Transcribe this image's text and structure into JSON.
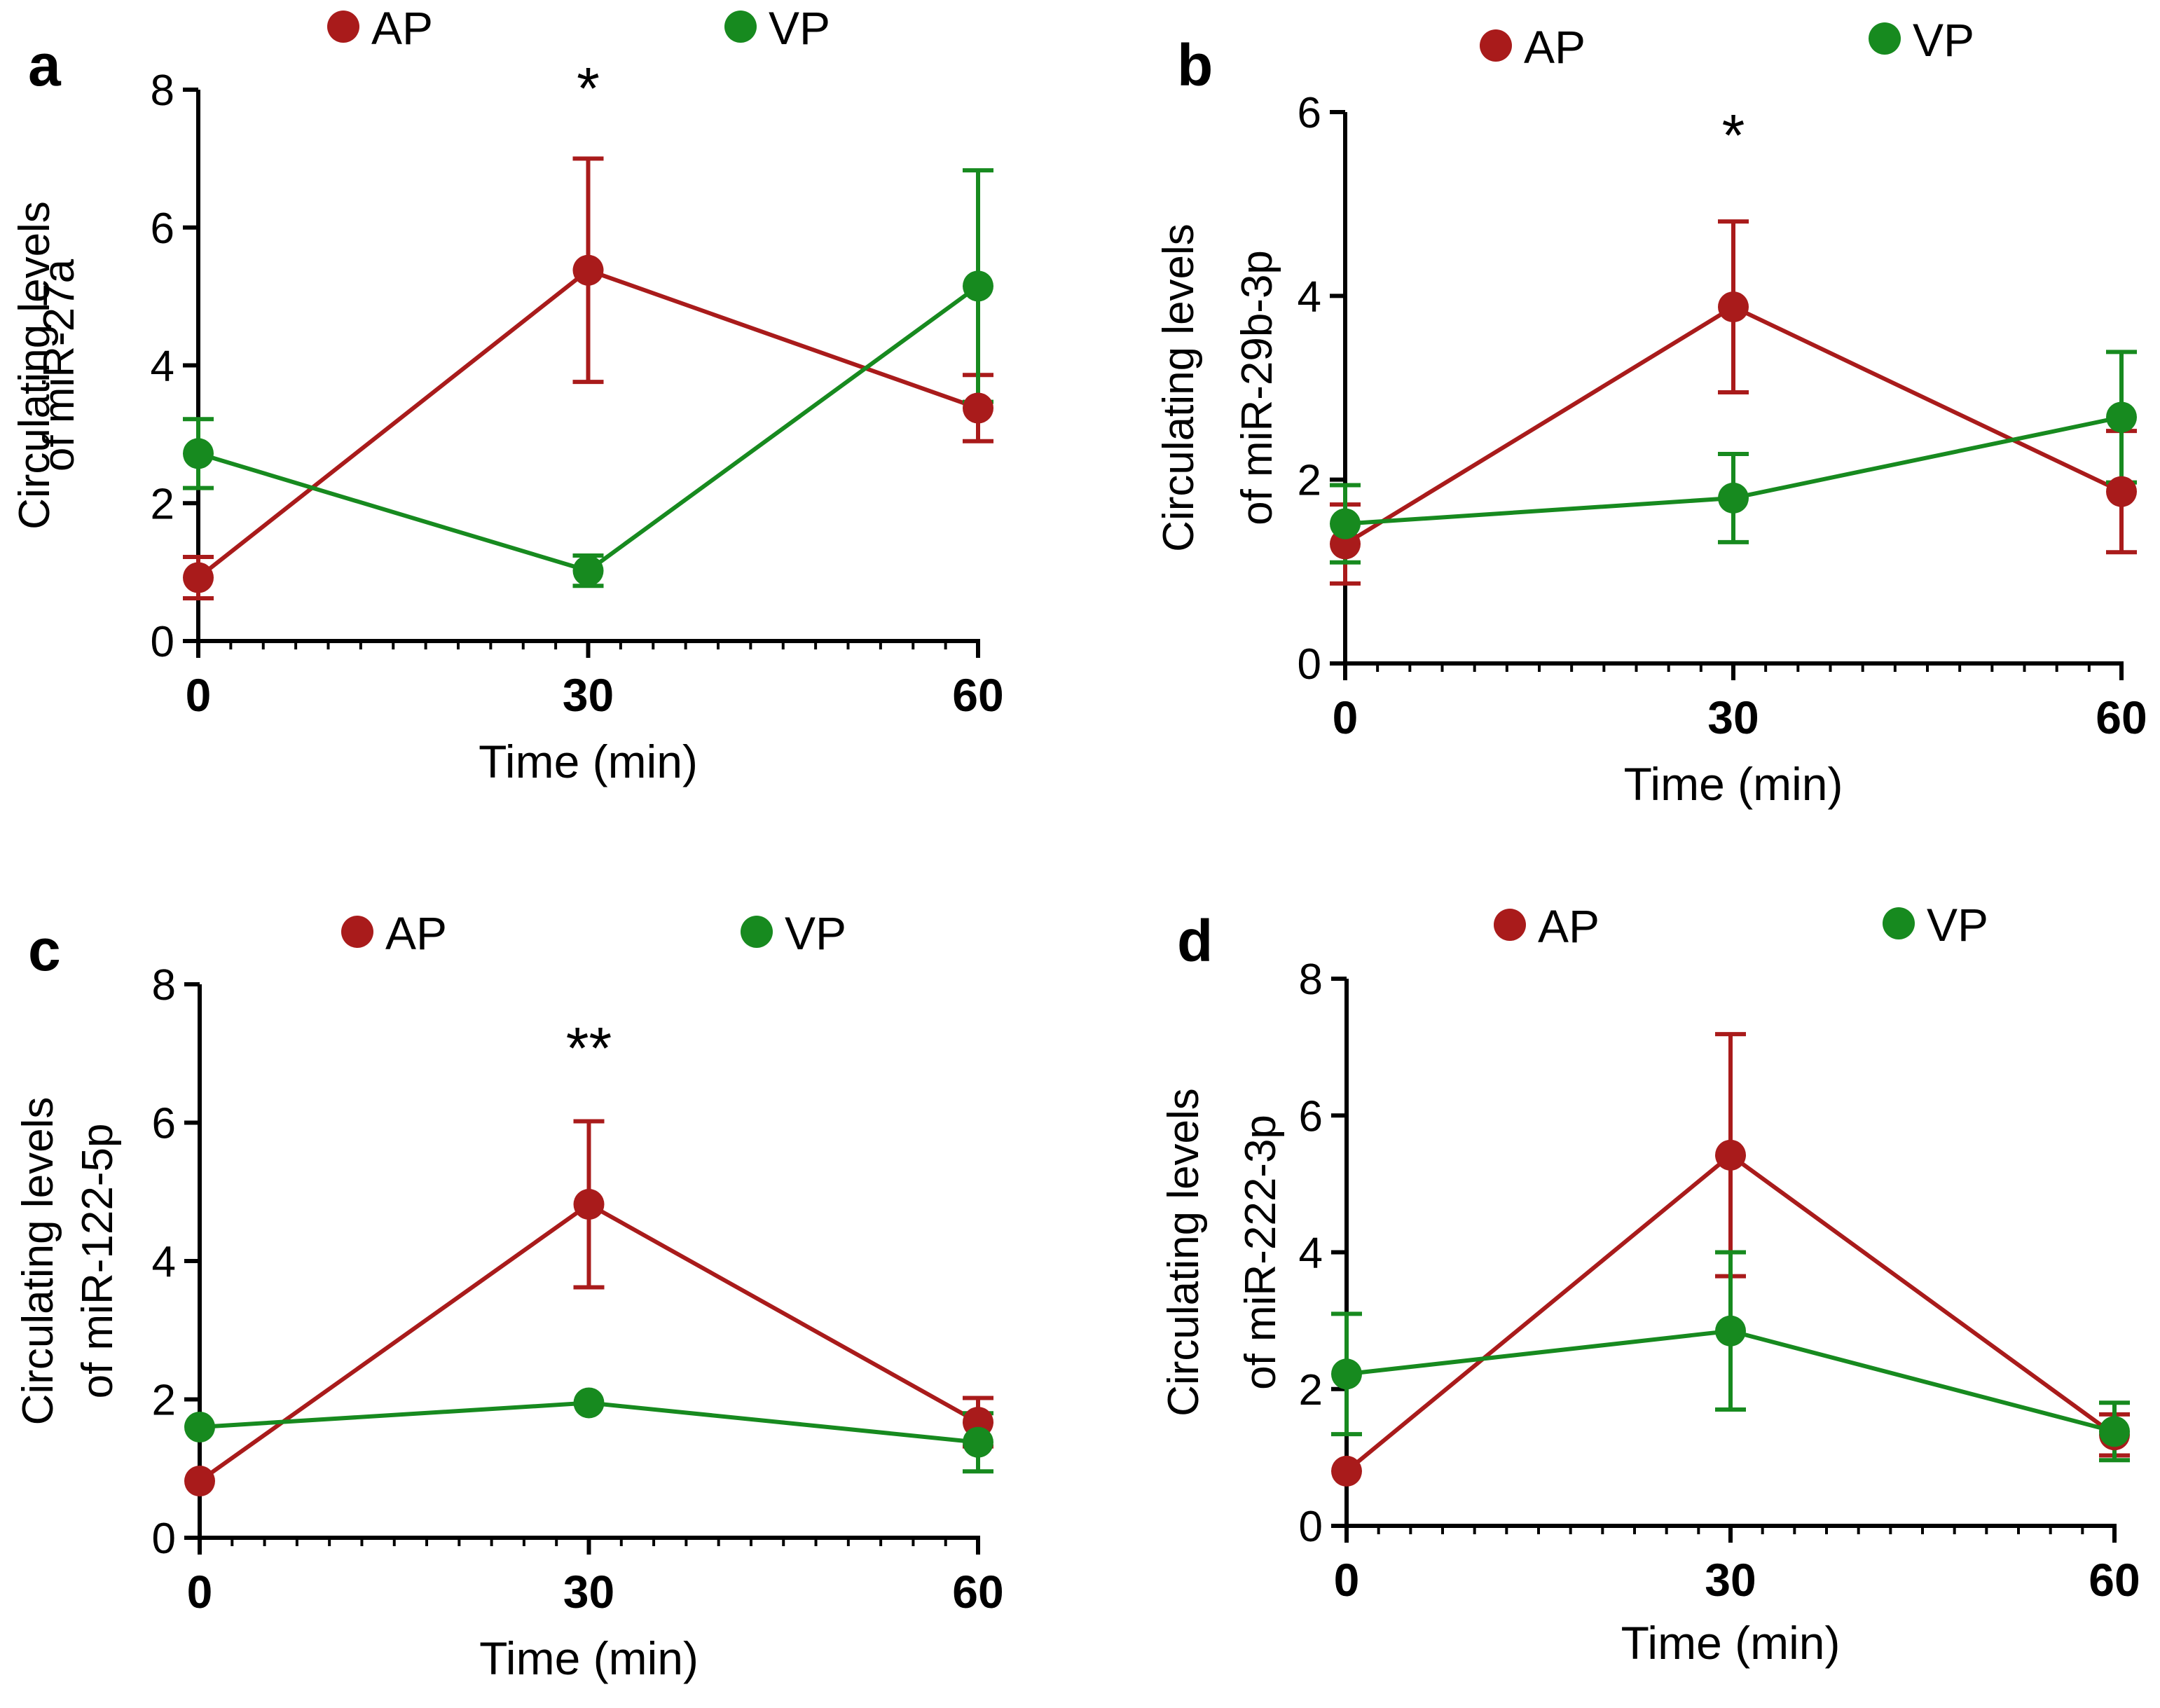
{
  "colors": {
    "AP": "#a91b1b",
    "VP": "#178a1f",
    "axis": "#000000"
  },
  "chart_data": [
    {
      "panel_label": "a",
      "type": "line",
      "legend": [
        "AP",
        "VP"
      ],
      "x": [
        0,
        30,
        60
      ],
      "x_ticks": [
        "0",
        "30",
        "60"
      ],
      "xlabel": "Time (min)",
      "ylabel_lines": [
        "Circulating levels",
        "of miR-27a"
      ],
      "ylim": [
        0,
        8
      ],
      "y_ticks": [
        "0",
        "2",
        "4",
        "6",
        "8"
      ],
      "series": [
        {
          "name": "AP",
          "values": [
            0.92,
            5.38,
            3.38
          ],
          "err": [
            0.3,
            1.62,
            0.48
          ]
        },
        {
          "name": "VP",
          "values": [
            2.72,
            1.02,
            5.15
          ],
          "err": [
            0.5,
            0.22,
            1.68
          ]
        }
      ],
      "annotations": [
        {
          "x": 30,
          "text": "*"
        }
      ]
    },
    {
      "panel_label": "b",
      "type": "line",
      "legend": [
        "AP",
        "VP"
      ],
      "x": [
        0,
        30,
        60
      ],
      "x_ticks": [
        "0",
        "30",
        "60"
      ],
      "xlabel": "Time (min)",
      "ylabel_lines": [
        "Circulating levels",
        "of miR-29b-3p"
      ],
      "ylim": [
        0,
        6
      ],
      "y_ticks": [
        "0",
        "2",
        "4",
        "6"
      ],
      "series": [
        {
          "name": "AP",
          "values": [
            1.3,
            3.88,
            1.87
          ],
          "err": [
            0.43,
            0.93,
            0.66
          ]
        },
        {
          "name": "VP",
          "values": [
            1.52,
            1.8,
            2.68
          ],
          "err": [
            0.42,
            0.48,
            0.71
          ]
        }
      ],
      "annotations": [
        {
          "x": 30,
          "text": "*"
        }
      ]
    },
    {
      "panel_label": "c",
      "type": "line",
      "legend": [
        "AP",
        "VP"
      ],
      "x": [
        0,
        30,
        60
      ],
      "x_ticks": [
        "0",
        "30",
        "60"
      ],
      "xlabel": "Time (min)",
      "ylabel_lines": [
        "Circulating levels",
        "of miR-122-5p"
      ],
      "ylim": [
        0,
        8
      ],
      "y_ticks": [
        "0",
        "2",
        "4",
        "6",
        "8"
      ],
      "series": [
        {
          "name": "AP",
          "values": [
            0.82,
            4.82,
            1.67
          ],
          "err": [
            0.0,
            1.2,
            0.35
          ]
        },
        {
          "name": "VP",
          "values": [
            1.6,
            1.95,
            1.38
          ],
          "err": [
            0.0,
            0.0,
            0.42
          ]
        }
      ],
      "annotations": [
        {
          "x": 30,
          "text": "**"
        }
      ]
    },
    {
      "panel_label": "d",
      "type": "line",
      "legend": [
        "AP",
        "VP"
      ],
      "x": [
        0,
        30,
        60
      ],
      "x_ticks": [
        "0",
        "30",
        "60"
      ],
      "xlabel": "Time (min)",
      "ylabel_lines": [
        "Circulating levels",
        "of miR-222-3p"
      ],
      "ylim": [
        0,
        8
      ],
      "y_ticks": [
        "0",
        "2",
        "4",
        "6",
        "8"
      ],
      "series": [
        {
          "name": "AP",
          "values": [
            0.8,
            5.42,
            1.33
          ],
          "err": [
            0.0,
            1.77,
            0.3
          ]
        },
        {
          "name": "VP",
          "values": [
            2.22,
            2.85,
            1.38
          ],
          "err": [
            0.88,
            1.15,
            0.42
          ]
        }
      ],
      "annotations": []
    }
  ]
}
